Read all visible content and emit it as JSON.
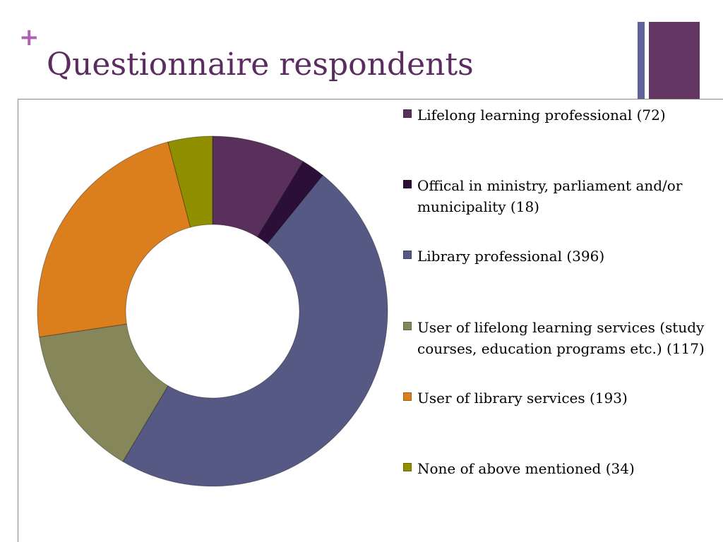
{
  "slide": {
    "plus": "+",
    "title": "Questionnaire respondents",
    "colors": {
      "plus": "#b05fb3",
      "title": "#5b2c60",
      "deco_thin": "#5f6399",
      "deco_thick": "#633562"
    }
  },
  "chart_data": {
    "type": "pie",
    "donut": true,
    "legend_position": "right",
    "series": [
      {
        "label": "Lifelong learning professional (72)",
        "value": 72,
        "color": "#59305c"
      },
      {
        "label": "Offical in ministry, parliament and/or municipality (18)",
        "value": 18,
        "color": "#2b0f38"
      },
      {
        "label": "Library professional (396)",
        "value": 396,
        "color": "#575985"
      },
      {
        "label": "User of lifelong learning services (study courses, education programs etc.) (117)",
        "value": 117,
        "color": "#85875a"
      },
      {
        "label": "User of library services (193)",
        "value": 193,
        "color": "#db7f1e"
      },
      {
        "label": "None of above mentioned (34)",
        "value": 34,
        "color": "#8f8f00"
      }
    ]
  }
}
